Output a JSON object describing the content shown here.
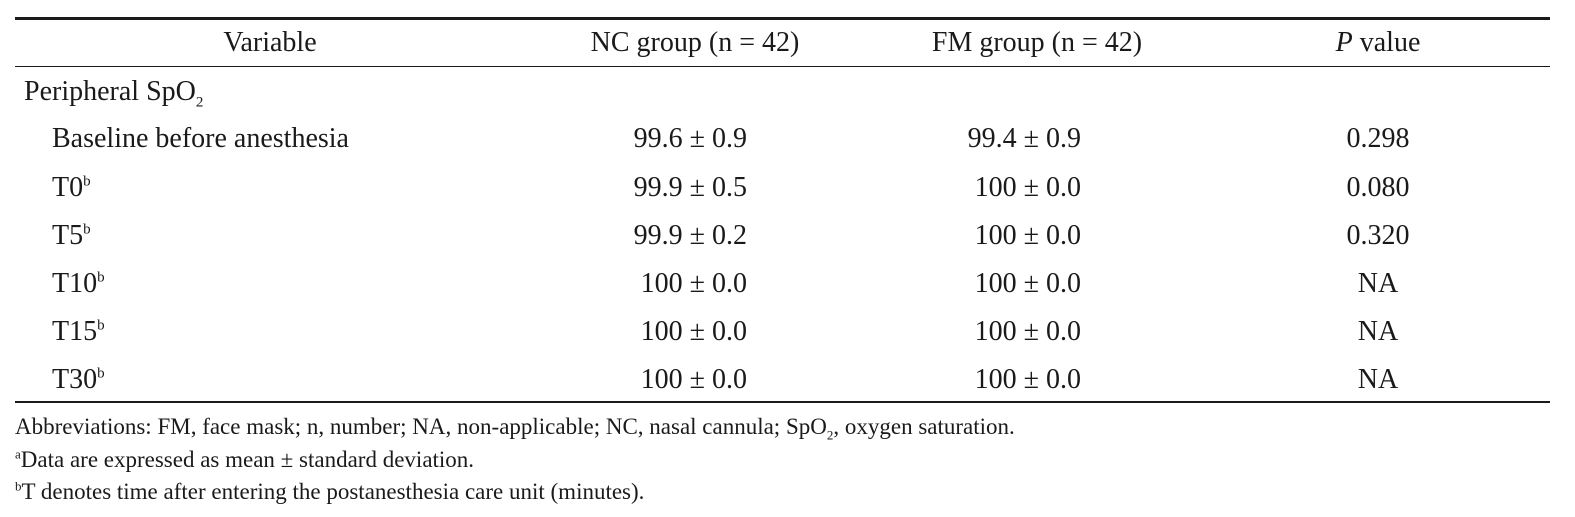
{
  "table": {
    "headers": {
      "variable": "Variable",
      "nc": "NC group (n = 42)",
      "fm": "FM group (n = 42)",
      "p_italic": "P",
      "p_rest": " value"
    },
    "section": {
      "label": "Peripheral SpO",
      "label_sub": "2"
    },
    "rows": [
      {
        "label": "Baseline before anesthesia",
        "sup": "",
        "nc": "99.6 ± 0.9",
        "fm": "99.4 ± 0.9",
        "p": "0.298"
      },
      {
        "label": "T0",
        "sup": "b",
        "nc": "99.9 ± 0.5",
        "fm": "100 ± 0.0",
        "p": "0.080"
      },
      {
        "label": "T5",
        "sup": "b",
        "nc": "99.9 ± 0.2",
        "fm": "100 ± 0.0",
        "p": "0.320"
      },
      {
        "label": "T10",
        "sup": "b",
        "nc": "100 ± 0.0",
        "fm": "100 ± 0.0",
        "p": "NA"
      },
      {
        "label": "T15",
        "sup": "b",
        "nc": "100 ± 0.0",
        "fm": "100 ± 0.0",
        "p": "NA"
      },
      {
        "label": "T30",
        "sup": "b",
        "nc": "100 ± 0.0",
        "fm": "100 ± 0.0",
        "p": "NA"
      }
    ]
  },
  "footnotes": {
    "abbrev_pre": "Abbreviations: FM, face mask; n, number; NA, non-applicable; NC, nasal cannula; SpO",
    "abbrev_sub": "2",
    "abbrev_post": ", oxygen saturation.",
    "note_a_mark": "a",
    "note_a_text": "Data are expressed as mean ± standard deviation.",
    "note_b_mark": "b",
    "note_b_text": "T denotes time after entering the postanesthesia care unit (minutes)."
  }
}
